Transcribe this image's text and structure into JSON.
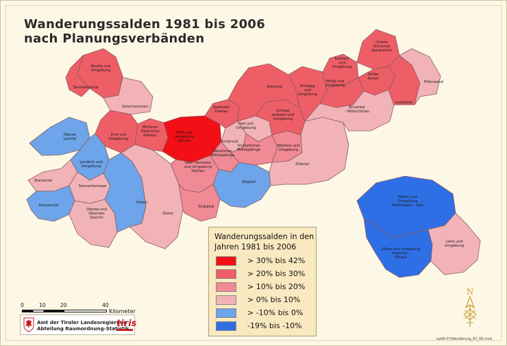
{
  "title": {
    "line1": "Wanderungssalden 1981 bis 2006",
    "line2": "nach Planungsverbänden"
  },
  "colors": {
    "class_30_42": "#f20f16",
    "class_20_30": "#ee5e67",
    "class_10_20": "#f08a94",
    "class_0_10": "#f1b3b8",
    "class_m10_0": "#6ea4e9",
    "class_m19_m10": "#2f6fe6",
    "background": "#fdf7e6",
    "legend_bg": "#f9e9c0"
  },
  "legend": {
    "title_line1": "Wanderungssalden in den",
    "title_line2": "Jahren 1981 bis 2006",
    "items": [
      {
        "label": "> 30% bis 42%",
        "color": "#f20f16"
      },
      {
        "label": "> 20% bis 30%",
        "color": "#ee5e67"
      },
      {
        "label": "> 10% bis 20%",
        "color": "#f08a94"
      },
      {
        "label": "> 0% bis 10%",
        "color": "#f1b3b8"
      },
      {
        "label": "> -10% bis 0%",
        "color": "#6ea4e9"
      },
      {
        "label": "-19% bis -10%",
        "color": "#2f6fe6"
      }
    ]
  },
  "regions": [
    {
      "name": "Reutte und Umgebung",
      "class": "class_20_30"
    },
    {
      "name": "Tannheimertal",
      "class": "class_20_30"
    },
    {
      "name": "Zwischentoren",
      "class": "class_0_10"
    },
    {
      "name": "Oberes Lechtal",
      "class": "class_m10_0"
    },
    {
      "name": "Imst und Umgebung",
      "class": "class_20_30"
    },
    {
      "name": "Landeck und Umgebung",
      "class": "class_m10_0"
    },
    {
      "name": "Stanzertal",
      "class": "class_0_10"
    },
    {
      "name": "Paznauntal",
      "class": "class_m10_0"
    },
    {
      "name": "Sonnenterrasse",
      "class": "class_0_10"
    },
    {
      "name": "Oberes und Oberstes Gericht",
      "class": "class_0_10"
    },
    {
      "name": "Pitztal",
      "class": "class_m10_0"
    },
    {
      "name": "Ötztal",
      "class": "class_0_10"
    },
    {
      "name": "Mittleres Oberinntal Plateau",
      "class": "class_20_30"
    },
    {
      "name": "Telfs und Umgebung Sellrain",
      "class": "class_30_42"
    },
    {
      "name": "Seefelder Plateau",
      "class": "class_20_30"
    },
    {
      "name": "Innsbruck",
      "class": "class_0_10"
    },
    {
      "name": "Westliches Mittelgebirge",
      "class": "class_10_20"
    },
    {
      "name": "Vols - Kematen und Umgebung Sellrain",
      "class": "class_10_20"
    },
    {
      "name": "Stubaital",
      "class": "class_10_20"
    },
    {
      "name": "Wipptal",
      "class": "class_m10_0"
    },
    {
      "name": "Hall und Umgebung",
      "class": "class_0_10"
    },
    {
      "name": "Südöstliches Mittelgebirge",
      "class": "class_10_20"
    },
    {
      "name": "Wattens und Umgebung",
      "class": "class_10_20"
    },
    {
      "name": "Schwaz - Jenbach und Umgebung",
      "class": "class_20_30"
    },
    {
      "name": "Achental",
      "class": "class_20_30"
    },
    {
      "name": "Zillertal",
      "class": "class_0_10"
    },
    {
      "name": "Brixlegg und Umgebung",
      "class": "class_20_30"
    },
    {
      "name": "Kufstein und Umgebung",
      "class": "class_20_30"
    },
    {
      "name": "Untere Schranne Kaiserwinkl",
      "class": "class_20_30"
    },
    {
      "name": "Wörgl und Umgebung",
      "class": "class_20_30"
    },
    {
      "name": "Wilder Kaiser",
      "class": "class_20_30"
    },
    {
      "name": "Brixental - Wildschönau",
      "class": "class_0_10"
    },
    {
      "name": "Leukental",
      "class": "class_20_30"
    },
    {
      "name": "Pillerseetal",
      "class": "class_0_10"
    },
    {
      "name": "Matrei und Umgebung Defereggen - Kals",
      "class": "class_m19_m10"
    },
    {
      "name": "Sillian und Umgebung Virgental - Tilliach",
      "class": "class_m19_m10"
    },
    {
      "name": "Lienz und Umgebung",
      "class": "class_0_10"
    }
  ],
  "labels": {
    "reutte": [
      "Reutte und",
      "Umgebung"
    ],
    "tannheim": "Tannheimertal",
    "zwischentoren": "Zwischentoren",
    "lechtal": [
      "Oberes",
      "Lechtal"
    ],
    "imst": [
      "Imst und",
      "Umgebung"
    ],
    "landeck": [
      "Landeck und",
      "Umgebung"
    ],
    "stanzertal": "Stanzertal",
    "paznaun": "Paznauntal",
    "sonnenterrasse": "Sonnenterrasse",
    "gericht": [
      "Oberes und",
      "Oberstes",
      "Gericht"
    ],
    "pitztal": "Pitztal",
    "oetztal": "Ötztal",
    "plateau": [
      "Mittleres",
      "Oberinntal",
      "Plateau"
    ],
    "telfs": [
      "Telfs und",
      "Umgebung",
      "Sellrain"
    ],
    "seefeld": [
      "Seefelder",
      "Plateau"
    ],
    "innsbruck": "Innsbruck",
    "westl": [
      "Westliches",
      "Mittelgebirge"
    ],
    "vols": [
      "Vols - Kematen",
      "und Umgebung",
      "Sellrain"
    ],
    "stubai": "Stubaital",
    "wipptal": "Wipptal",
    "hall": [
      "Hall und",
      "Umgebung"
    ],
    "suedoestl": [
      "Südöstliches",
      "Mittelgebirge"
    ],
    "wattens": [
      "Wattens und",
      "Umgebung"
    ],
    "schwaz": [
      "Schwaz",
      "Jenbach und",
      "Umgebung"
    ],
    "achental": "Achental",
    "zillertal": "Zillertal",
    "brixlegg": [
      "Brixlegg",
      "und",
      "Umgebung"
    ],
    "kufstein": [
      "Kufstein",
      "und",
      "Umgebung"
    ],
    "schranne": [
      "Untere",
      "Schranne",
      "Kaiserwinkl"
    ],
    "woergl": [
      "Wörgl und",
      "Umgebung"
    ],
    "kaiser": [
      "Wilder",
      "Kaiser"
    ],
    "brixental": [
      "Brixental",
      "- Wildschönau"
    ],
    "leukental": "Leukental",
    "pillersee": "Pillerseetal",
    "matrei": [
      "Matrei und",
      "Umgebung",
      "Defereggen - Kals"
    ],
    "sillian": [
      "Sillian und Umgebung",
      "Virgental -",
      "Tilliach"
    ],
    "lienz": [
      "Lienz und",
      "Umgebung"
    ]
  },
  "scale": {
    "ticks": [
      "0",
      "10",
      "20",
      "40"
    ],
    "unit": "Kilometer"
  },
  "institution": {
    "line1": "Amt der Tiroler Landesregierung",
    "line2": "Abteilung Raumordnung-Statistik",
    "logo_text": "tiris"
  },
  "compass": {
    "letter": "N"
  },
  "file_code": "sp08-07/Wanderung_81_06.mxd"
}
